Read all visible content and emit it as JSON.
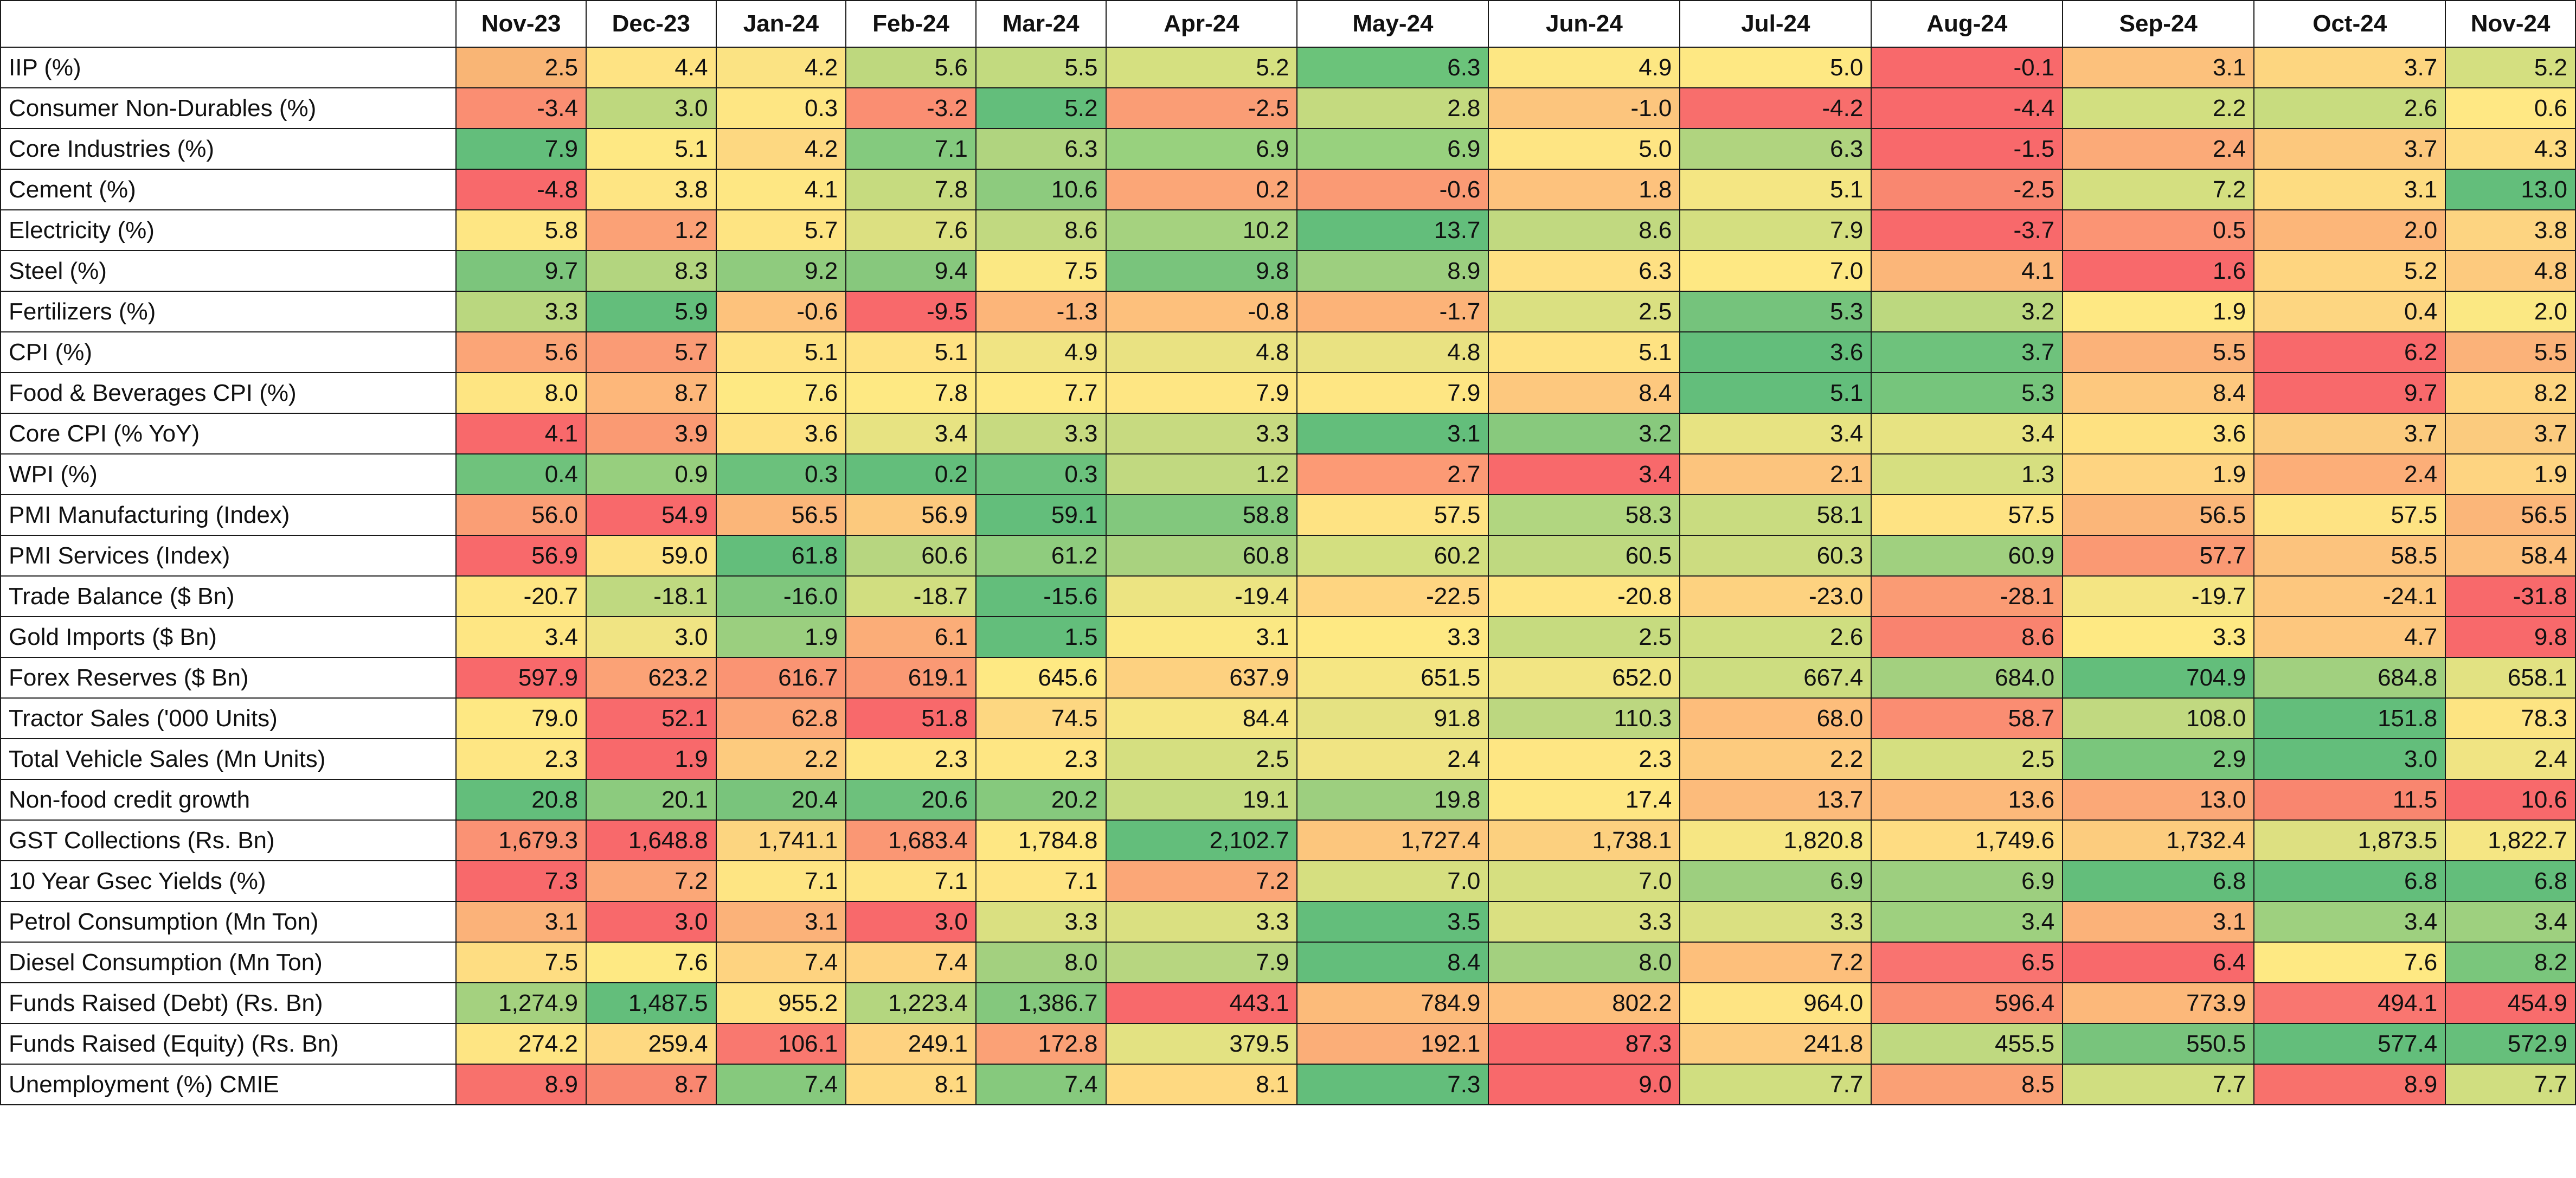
{
  "table": {
    "corner": "",
    "months": [
      "Nov-23",
      "Dec-23",
      "Jan-24",
      "Feb-24",
      "Mar-24",
      "Apr-24",
      "May-24",
      "Jun-24",
      "Jul-24",
      "Aug-24",
      "Sep-24",
      "Oct-24",
      "Nov-24"
    ],
    "rows": [
      {
        "label": "IIP (%)",
        "values": [
          "2.5",
          "4.4",
          "4.2",
          "5.6",
          "5.5",
          "5.2",
          "6.3",
          "4.9",
          "5.0",
          "-0.1",
          "3.1",
          "3.7",
          "5.2"
        ],
        "colors": [
          "#f9b575",
          "#fee383",
          "#fbe383",
          "#bed87e",
          "#c2da7f",
          "#d5e080",
          "#6bc37a",
          "#fde783",
          "#fee883",
          "#f8696b",
          "#fcc17c",
          "#fdd680",
          "#d4df80"
        ]
      },
      {
        "label": "Consumer Non-Durables (%)",
        "values": [
          "-3.4",
          "3.0",
          "0.3",
          "-3.2",
          "5.2",
          "-2.5",
          "2.8",
          "-1.0",
          "-4.2",
          "-4.4",
          "2.2",
          "2.6",
          "0.6"
        ],
        "colors": [
          "#fa8e72",
          "#bed87e",
          "#fee683",
          "#fa8e72",
          "#63be7b",
          "#fa9d75",
          "#c4da7f",
          "#fcc57d",
          "#f86e6c",
          "#f8696b",
          "#d2df80",
          "#c8dc7f",
          "#ffe884"
        ]
      },
      {
        "label": "Core Industries (%)",
        "values": [
          "7.9",
          "5.1",
          "4.2",
          "7.1",
          "6.3",
          "6.9",
          "6.9",
          "5.0",
          "6.3",
          "-1.5",
          "2.4",
          "3.7",
          "4.3"
        ],
        "colors": [
          "#63be7b",
          "#fee883",
          "#fdd881",
          "#84ca7e",
          "#b0d47f",
          "#98d17e",
          "#98d17e",
          "#fee583",
          "#b0d47f",
          "#f8696b",
          "#fbaa78",
          "#fcc87d",
          "#fedc82"
        ]
      },
      {
        "label": "Cement (%)",
        "values": [
          "-4.8",
          "3.8",
          "4.1",
          "7.8",
          "10.6",
          "0.2",
          "-0.6",
          "1.8",
          "5.1",
          "-2.5",
          "7.2",
          "3.1",
          "13.0"
        ],
        "colors": [
          "#f8696b",
          "#fee583",
          "#fee783",
          "#c6db7f",
          "#8dcb7e",
          "#fba677",
          "#fa9a74",
          "#fdc27d",
          "#f4e683",
          "#f98770",
          "#d4df80",
          "#fddc81",
          "#63be7b"
        ]
      },
      {
        "label": "Electricity (%)",
        "values": [
          "5.8",
          "1.2",
          "5.7",
          "7.6",
          "8.6",
          "10.2",
          "13.7",
          "8.6",
          "7.9",
          "-3.7",
          "0.5",
          "2.0",
          "3.8"
        ],
        "colors": [
          "#fee683",
          "#fba176",
          "#fee482",
          "#dce081",
          "#c1d980",
          "#a5d27f",
          "#63be7b",
          "#c1d980",
          "#d4df80",
          "#f8696b",
          "#fb9474",
          "#fcb679",
          "#fdd481"
        ]
      },
      {
        "label": "Steel (%)",
        "values": [
          "9.7",
          "8.3",
          "9.2",
          "9.4",
          "7.5",
          "9.8",
          "8.9",
          "6.3",
          "7.0",
          "4.1",
          "1.6",
          "5.2",
          "4.8"
        ],
        "colors": [
          "#7cc57c",
          "#b3d57f",
          "#8fcb7e",
          "#87c87d",
          "#fbe883",
          "#79c47c",
          "#9dcf7f",
          "#fee083",
          "#fee883",
          "#fbb679",
          "#f8696b",
          "#fed580",
          "#fdca7e"
        ]
      },
      {
        "label": "Fertilizers (%)",
        "values": [
          "3.3",
          "5.9",
          "-0.6",
          "-9.5",
          "-1.3",
          "-0.8",
          "-1.7",
          "2.5",
          "5.3",
          "3.2",
          "1.9",
          "0.4",
          "2.0"
        ],
        "colors": [
          "#bad77f",
          "#63be7b",
          "#fdc27c",
          "#f8696b",
          "#fcb579",
          "#fdc07c",
          "#fcb378",
          "#dae081",
          "#75c37c",
          "#bcd87f",
          "#fee883",
          "#fdd681",
          "#fbe883"
        ]
      },
      {
        "label": "CPI (%)",
        "values": [
          "5.6",
          "5.7",
          "5.1",
          "5.1",
          "4.9",
          "4.8",
          "4.8",
          "5.1",
          "3.6",
          "3.7",
          "5.5",
          "6.2",
          "5.5"
        ],
        "colors": [
          "#fba577",
          "#fa9b75",
          "#fee282",
          "#fee282",
          "#f0e483",
          "#e9e282",
          "#e9e282",
          "#fee282",
          "#63be7b",
          "#6ec27c",
          "#fbb279",
          "#f8696b",
          "#fbb279"
        ]
      },
      {
        "label": "Food & Beverages CPI (%)",
        "values": [
          "8.0",
          "8.7",
          "7.6",
          "7.8",
          "7.7",
          "7.9",
          "7.9",
          "8.4",
          "5.1",
          "5.3",
          "8.4",
          "9.7",
          "8.2"
        ],
        "colors": [
          "#fee582",
          "#fdb77a",
          "#fee983",
          "#fee983",
          "#fee983",
          "#fee683",
          "#fee683",
          "#fdc87e",
          "#63be7b",
          "#76c57c",
          "#fdc87e",
          "#f8696b",
          "#fed580"
        ]
      },
      {
        "label": "Core CPI (% YoY)",
        "values": [
          "4.1",
          "3.9",
          "3.6",
          "3.4",
          "3.3",
          "3.3",
          "3.1",
          "3.2",
          "3.4",
          "3.4",
          "3.6",
          "3.7",
          "3.7"
        ],
        "colors": [
          "#f8696b",
          "#fa9a73",
          "#fee181",
          "#e7e382",
          "#c7da80",
          "#c7da80",
          "#63be7b",
          "#88c97d",
          "#e7e382",
          "#e7e382",
          "#fee181",
          "#fbcb7e",
          "#fbcb7e"
        ]
      },
      {
        "label": "WPI (%)",
        "values": [
          "0.4",
          "0.9",
          "0.3",
          "0.2",
          "0.3",
          "1.2",
          "2.7",
          "3.4",
          "2.1",
          "1.3",
          "1.9",
          "2.4",
          "1.9"
        ],
        "colors": [
          "#6fc27c",
          "#97cf7e",
          "#6bc17c",
          "#63be7b",
          "#6bc17c",
          "#c1d980",
          "#fc9a75",
          "#f8696b",
          "#fcc47d",
          "#d6df80",
          "#fed481",
          "#fcae78",
          "#fed481"
        ]
      },
      {
        "label": "PMI Manufacturing (Index)",
        "values": [
          "56.0",
          "54.9",
          "56.5",
          "56.9",
          "59.1",
          "58.8",
          "57.5",
          "58.3",
          "58.1",
          "57.5",
          "56.5",
          "57.5",
          "56.5"
        ],
        "colors": [
          "#fa9e75",
          "#f8696b",
          "#fbb679",
          "#fcc97d",
          "#63be7b",
          "#82c87d",
          "#fee383",
          "#b1d680",
          "#c9dc80",
          "#fee383",
          "#fbb679",
          "#fee383",
          "#fbb679"
        ]
      },
      {
        "label": "PMI Services (Index)",
        "values": [
          "56.9",
          "59.0",
          "61.8",
          "60.6",
          "61.2",
          "60.8",
          "60.2",
          "60.5",
          "60.3",
          "60.9",
          "57.7",
          "58.5",
          "58.4"
        ],
        "colors": [
          "#f8696b",
          "#fde282",
          "#63be7b",
          "#b7d680",
          "#8fcc7e",
          "#a9d27f",
          "#d3df80",
          "#bfd980",
          "#ccdc80",
          "#a0d07f",
          "#fa9973",
          "#fcc37d",
          "#fcbf7c"
        ]
      },
      {
        "label": "Trade Balance ($ Bn)",
        "values": [
          "-20.7",
          "-18.1",
          "-16.0",
          "-18.7",
          "-15.6",
          "-19.4",
          "-22.5",
          "-20.8",
          "-23.0",
          "-28.1",
          "-19.7",
          "-24.1",
          "-31.8"
        ],
        "colors": [
          "#fee683",
          "#bfd980",
          "#80c77d",
          "#d1de80",
          "#63be7b",
          "#ece482",
          "#fed581",
          "#fee583",
          "#fdd280",
          "#fa9b74",
          "#f4e583",
          "#fdc77e",
          "#f8696b"
        ]
      },
      {
        "label": "Gold Imports ($ Bn)",
        "values": [
          "3.4",
          "3.0",
          "1.9",
          "6.1",
          "1.5",
          "3.1",
          "3.3",
          "2.5",
          "2.6",
          "8.6",
          "3.3",
          "4.7",
          "9.8"
        ],
        "colors": [
          "#fee683",
          "#f0e483",
          "#9bcf7f",
          "#fbad78",
          "#63be7b",
          "#fbe883",
          "#fee983",
          "#c6db7f",
          "#cfde80",
          "#f9836f",
          "#fee983",
          "#fdc77e",
          "#f8696b"
        ]
      },
      {
        "label": "Forex Reserves ($ Bn)",
        "values": [
          "597.9",
          "623.2",
          "616.7",
          "619.1",
          "645.6",
          "637.9",
          "651.5",
          "652.0",
          "667.4",
          "684.0",
          "704.9",
          "684.8",
          "658.1"
        ],
        "colors": [
          "#f8696b",
          "#fba276",
          "#fa9473",
          "#fa9974",
          "#fee983",
          "#fdd180",
          "#f5e683",
          "#f2e583",
          "#cddd80",
          "#a3d07f",
          "#63be7b",
          "#a1d07f",
          "#e2e282"
        ]
      },
      {
        "label": "Tractor Sales ('000 Units)",
        "values": [
          "79.0",
          "52.1",
          "62.8",
          "51.8",
          "74.5",
          "84.4",
          "91.8",
          "110.3",
          "68.0",
          "58.7",
          "108.0",
          "151.8",
          "78.3"
        ],
        "colors": [
          "#fee883",
          "#f86a6c",
          "#fba577",
          "#f8696b",
          "#fdd781",
          "#f6e683",
          "#e5e282",
          "#bcd780",
          "#fdbd7b",
          "#fa8d72",
          "#c1d980",
          "#63be7b",
          "#fde482"
        ]
      },
      {
        "label": "Total Vehicle Sales (Mn Units)",
        "values": [
          "2.3",
          "1.9",
          "2.2",
          "2.3",
          "2.3",
          "2.5",
          "2.4",
          "2.3",
          "2.2",
          "2.5",
          "2.9",
          "3.0",
          "2.4"
        ],
        "colors": [
          "#fee683",
          "#f8696b",
          "#fdcb7e",
          "#fee683",
          "#fee683",
          "#d5df80",
          "#f0e483",
          "#fee683",
          "#fdcb7e",
          "#d5df80",
          "#7ac67c",
          "#63be7b",
          "#f0e483"
        ]
      },
      {
        "label": "Non-food credit growth",
        "values": [
          "20.8",
          "20.1",
          "20.4",
          "20.6",
          "20.2",
          "19.1",
          "19.8",
          "17.4",
          "13.7",
          "13.6",
          "13.0",
          "11.5",
          "10.6"
        ],
        "colors": [
          "#63be7b",
          "#8ccb7e",
          "#79c47c",
          "#6dc17c",
          "#86c97d",
          "#c5db80",
          "#9dcf7f",
          "#fee783",
          "#fcbb7b",
          "#fcb97a",
          "#fba877",
          "#f9866f",
          "#f8696b"
        ]
      },
      {
        "label": "GST Collections (Rs. Bn)",
        "values": [
          "1,679.3",
          "1,648.8",
          "1,741.1",
          "1,683.4",
          "1,784.8",
          "2,102.7",
          "1,727.4",
          "1,738.1",
          "1,820.8",
          "1,749.6",
          "1,732.4",
          "1,873.5",
          "1,822.7"
        ],
        "colors": [
          "#fa9274",
          "#f8696b",
          "#fcd580",
          "#fa9774",
          "#fee783",
          "#63be7b",
          "#fcc67d",
          "#fcd07f",
          "#f6e683",
          "#fedc82",
          "#fccc7e",
          "#dde081",
          "#f5e683"
        ]
      },
      {
        "label": "10 Year Gsec Yields (%)",
        "values": [
          "7.3",
          "7.2",
          "7.1",
          "7.1",
          "7.1",
          "7.2",
          "7.0",
          "7.0",
          "6.9",
          "6.9",
          "6.8",
          "6.8",
          "6.8"
        ],
        "colors": [
          "#f8696b",
          "#fba777",
          "#fee583",
          "#fee583",
          "#fee583",
          "#fba777",
          "#d6df80",
          "#d6df80",
          "#9dcf7f",
          "#9dcf7f",
          "#63be7b",
          "#63be7b",
          "#63be7b"
        ]
      },
      {
        "label": "Petrol Consumption (Mn Ton)",
        "values": [
          "3.1",
          "3.0",
          "3.1",
          "3.0",
          "3.3",
          "3.3",
          "3.5",
          "3.3",
          "3.3",
          "3.4",
          "3.1",
          "3.4",
          "3.4"
        ],
        "colors": [
          "#fbb279",
          "#f8696b",
          "#fbb279",
          "#f8696b",
          "#dae081",
          "#dae081",
          "#63be7b",
          "#dae081",
          "#dae081",
          "#9ed07f",
          "#fbb279",
          "#9ed07f",
          "#9ed07f"
        ]
      },
      {
        "label": "Diesel Consumption (Mn Ton)",
        "values": [
          "7.5",
          "7.6",
          "7.4",
          "7.4",
          "8.0",
          "7.9",
          "8.4",
          "8.0",
          "7.2",
          "6.5",
          "6.4",
          "7.6",
          "8.2"
        ],
        "colors": [
          "#fedd82",
          "#fee983",
          "#fed380",
          "#fed380",
          "#a3d07f",
          "#b7d680",
          "#63be7b",
          "#a3d07f",
          "#fdbf7b",
          "#f97370",
          "#f8696b",
          "#fee983",
          "#7ac67c"
        ]
      },
      {
        "label": "Funds Raised (Debt) (Rs. Bn)",
        "values": [
          "1,274.9",
          "1,487.5",
          "955.2",
          "1,223.4",
          "1,386.7",
          "443.1",
          "784.9",
          "802.2",
          "964.0",
          "596.4",
          "773.9",
          "494.1",
          "454.9"
        ],
        "colors": [
          "#a4d17f",
          "#63be7b",
          "#fee283",
          "#b4d67f",
          "#84c87d",
          "#f8696b",
          "#fcbb7a",
          "#fdbf7c",
          "#fee483",
          "#fa8f72",
          "#fcb87a",
          "#f97670",
          "#f86c6c"
        ]
      },
      {
        "label": "Funds Raised (Equity) (Rs. Bn)",
        "values": [
          "274.2",
          "259.4",
          "106.1",
          "249.1",
          "172.8",
          "379.5",
          "192.1",
          "87.3",
          "241.8",
          "455.5",
          "550.5",
          "577.4",
          "572.9"
        ],
        "colors": [
          "#fee583",
          "#fed981",
          "#f9786f",
          "#fed280",
          "#fba176",
          "#e3e282",
          "#fbae78",
          "#f8696b",
          "#fdcc7f",
          "#bfd980",
          "#78c47c",
          "#63be7b",
          "#66bf7b"
        ]
      },
      {
        "label": "Unemployment (%) CMIE",
        "values": [
          "8.9",
          "8.7",
          "7.4",
          "8.1",
          "7.4",
          "8.1",
          "7.3",
          "9.0",
          "7.7",
          "8.5",
          "7.7",
          "8.9",
          "7.7"
        ],
        "colors": [
          "#f8716c",
          "#f98770",
          "#86c97d",
          "#fed981",
          "#86c97d",
          "#fed981",
          "#63be7b",
          "#f8696b",
          "#d0de80",
          "#faa075",
          "#d0de80",
          "#f8716c",
          "#d0de80"
        ]
      }
    ]
  }
}
